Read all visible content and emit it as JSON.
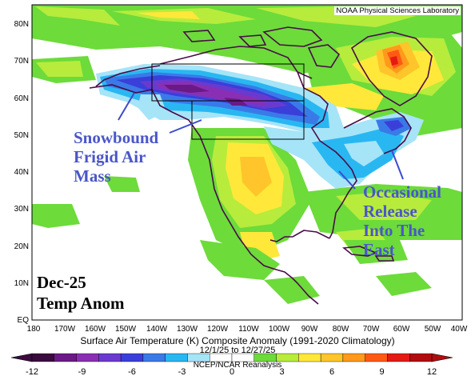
{
  "credit": "NOAA Physical Sciences Laboratory",
  "lat_labels": [
    "80N",
    "70N",
    "60N",
    "50N",
    "40N",
    "30N",
    "20N",
    "10N",
    "EQ"
  ],
  "lon_labels": [
    "180",
    "170W",
    "160W",
    "150W",
    "140W",
    "130W",
    "120W",
    "110W",
    "100W",
    "90W",
    "80W",
    "70W",
    "60W",
    "50W",
    "40W"
  ],
  "title": "Surface Air Temperature (K) Composite Anomaly (1991-2020 Climatology)",
  "dates": "12/1/25 to 12/27/25",
  "source": "NCEP/NCAR Reanalysis",
  "colorbar": {
    "ticks": [
      "-12",
      "-9",
      "-6",
      "-3",
      "0",
      "3",
      "6",
      "9",
      "12"
    ],
    "colors": [
      "#3b0a3e",
      "#6a1a86",
      "#8a2fb4",
      "#6a3ad0",
      "#3a3fd9",
      "#3a7ae8",
      "#29b7f2",
      "#a6e4f8",
      "#ffffff",
      "#ffffff",
      "#6ddb3a",
      "#b7ec3c",
      "#ffe83a",
      "#ffc52a",
      "#ff9a1c",
      "#ff5a14",
      "#e41a14",
      "#b10c10"
    ]
  },
  "annotations": {
    "left": [
      "Snowbound",
      "Frigid Air",
      "Mass"
    ],
    "right": [
      "Occasional",
      "Release",
      "Into The",
      "East"
    ]
  },
  "corner_label": [
    "Dec-25",
    "Temp Anom"
  ]
}
